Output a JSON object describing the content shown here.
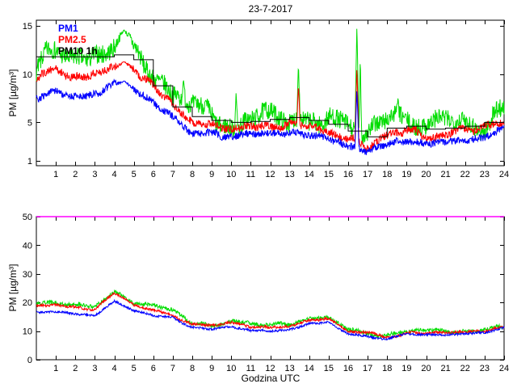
{
  "chart_data": [
    {
      "type": "line",
      "title": "23-7-2017",
      "ylabel": "PM [µg/m³]",
      "xlabel": "",
      "xlim": [
        0,
        24
      ],
      "ylim": [
        0.5,
        15.6
      ],
      "xticks": [
        1,
        2,
        3,
        4,
        5,
        6,
        7,
        8,
        9,
        10,
        11,
        12,
        13,
        14,
        15,
        16,
        17,
        18,
        19,
        20,
        21,
        22,
        23,
        24
      ],
      "yticks": [
        1,
        5,
        10,
        15
      ],
      "grid": false,
      "legend_position": "top-left",
      "legend": [
        {
          "label": "PM1",
          "color": "#0000ff"
        },
        {
          "label": "PM2.5",
          "color": "#ff0000"
        },
        {
          "label": "PM10 1h",
          "color": "#000000"
        }
      ],
      "series": [
        {
          "name": "PM10",
          "color": "#00dd00",
          "noise": 1.3,
          "hourly": [
            12,
            12.3,
            11.8,
            12,
            13.2,
            12.8,
            10.5,
            7.8,
            6,
            5.5,
            5.3,
            5.5,
            5.5,
            5.8,
            5.5,
            5.2,
            4,
            3.2,
            4.2,
            5.2,
            4.4,
            4.6,
            4.8,
            5.2,
            6
          ]
        },
        {
          "name": "PM2.5",
          "color": "#ff0000",
          "noise": 0.55,
          "hourly": [
            9.8,
            10.2,
            9.7,
            10,
            11,
            10.6,
            8.8,
            6.5,
            5,
            4.6,
            4.4,
            4.6,
            4.6,
            4.8,
            4.6,
            4.3,
            3.2,
            2.6,
            3.4,
            4.2,
            3.6,
            3.8,
            4,
            4.3,
            4.9
          ]
        },
        {
          "name": "PM1",
          "color": "#0000ff",
          "noise": 0.5,
          "hourly": [
            7.8,
            8.2,
            7.7,
            8,
            9,
            8.7,
            7.2,
            5.3,
            4.1,
            3.8,
            3.6,
            3.8,
            3.8,
            4,
            3.8,
            3.5,
            2.5,
            1.8,
            2.7,
            3.4,
            3,
            3.1,
            3.3,
            3.6,
            4.1
          ]
        },
        {
          "name": "PM10 1h",
          "color": "#000000",
          "step": true,
          "hourly": [
            11.8,
            11.8,
            11.8,
            11.8,
            12,
            11.5,
            8.8,
            6.6,
            5.6,
            5.2,
            5,
            5.1,
            5.3,
            5.5,
            5.2,
            4.8,
            4.1,
            3.5,
            4.4,
            4.6,
            4.3,
            4.4,
            4.6,
            5
          ]
        }
      ],
      "spikes": [
        {
          "x": 4.5,
          "w": 0.5,
          "values": {
            "PM10": 14.6,
            "PM2.5": 11.3,
            "PM1": 9.3
          }
        },
        {
          "x": 7.55,
          "w": 0.1,
          "values": {
            "PM10": 9.4
          }
        },
        {
          "x": 10.25,
          "w": 0.08,
          "values": {
            "PM10": 8.2
          }
        },
        {
          "x": 13.45,
          "w": 0.08,
          "values": {
            "PM10": 11.3,
            "PM2.5": 9.0
          }
        },
        {
          "x": 16.45,
          "w": 0.1,
          "values": {
            "PM10": 15.3,
            "PM2.5": 10.8,
            "PM1": 8.5
          }
        },
        {
          "x": 16.62,
          "w": 0.07,
          "values": {
            "PM10": 12
          }
        },
        {
          "x": 18.55,
          "w": 0.07,
          "values": {
            "PM10": 7.6
          }
        }
      ]
    },
    {
      "type": "line",
      "title": "",
      "ylabel": "PM [µg/m³]",
      "xlabel": "Godzina UTC",
      "xlim": [
        0,
        24
      ],
      "ylim": [
        0,
        50
      ],
      "xticks": [
        1,
        2,
        3,
        4,
        5,
        6,
        7,
        8,
        9,
        10,
        11,
        12,
        13,
        14,
        15,
        16,
        17,
        18,
        19,
        20,
        21,
        22,
        23,
        24
      ],
      "yticks": [
        0,
        10,
        20,
        30,
        40,
        50
      ],
      "grid": false,
      "series": [
        {
          "name": "PM10",
          "color": "#00dd00",
          "noise": 0.9,
          "hourly": [
            20,
            20.5,
            19.5,
            18.5,
            24.5,
            20,
            18.5,
            17,
            13,
            12.5,
            13.5,
            12.5,
            12,
            12.5,
            14.5,
            15,
            10.5,
            9.5,
            8.5,
            10,
            9.5,
            9.8,
            10.2,
            10.8,
            12.5
          ]
        },
        {
          "name": "PM2.5",
          "color": "#ff0000",
          "noise": 0.6,
          "hourly": [
            19,
            19.5,
            18.5,
            17.5,
            23,
            19,
            17.5,
            16,
            12.2,
            11.8,
            12.8,
            11.8,
            11.3,
            11.8,
            13.8,
            14.2,
            9.8,
            9,
            8,
            9.4,
            9,
            9.2,
            9.6,
            10.2,
            11.8
          ]
        },
        {
          "name": "PM1",
          "color": "#0000ff",
          "noise": 0.5,
          "hourly": [
            16.5,
            17,
            16,
            15.5,
            20.5,
            17,
            15.5,
            14.5,
            11,
            10.5,
            11.5,
            10.5,
            10,
            10.5,
            12.5,
            13,
            9,
            8.2,
            7.3,
            8.7,
            8.2,
            8.5,
            8.8,
            9.4,
            11
          ]
        },
        {
          "name": "limit-50",
          "color": "#ff00ff",
          "constant": 50,
          "width": 1.6
        }
      ],
      "spikes": []
    }
  ]
}
